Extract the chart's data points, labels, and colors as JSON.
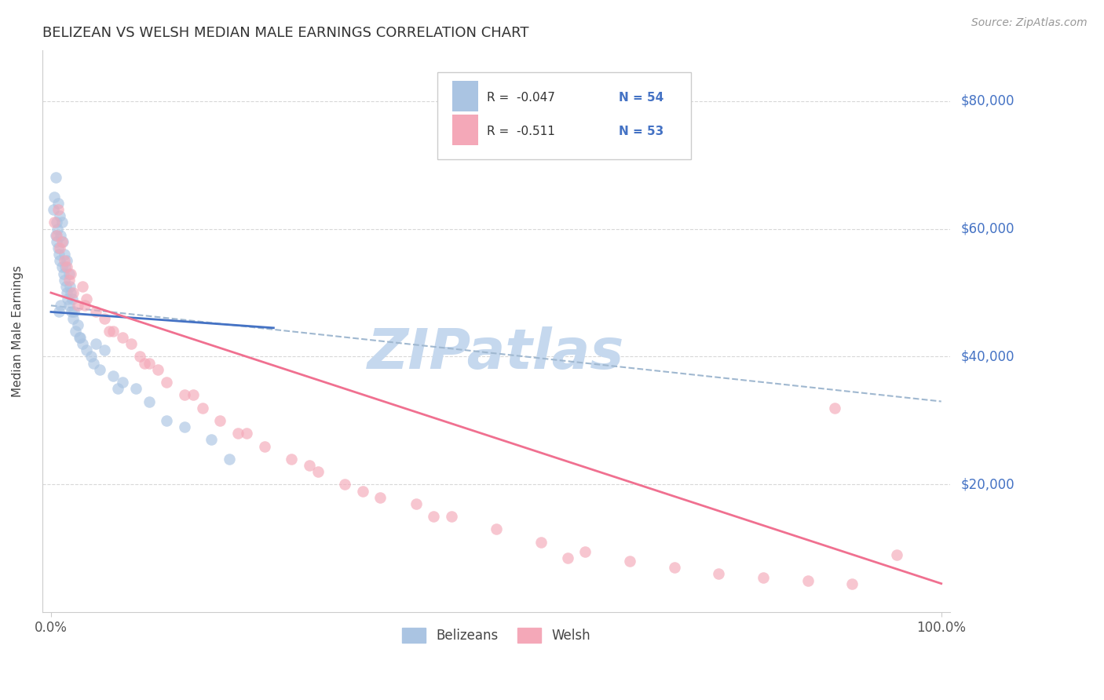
{
  "title": "BELIZEAN VS WELSH MEDIAN MALE EARNINGS CORRELATION CHART",
  "source": "Source: ZipAtlas.com",
  "ylabel": "Median Male Earnings",
  "y_tick_labels": [
    "$80,000",
    "$60,000",
    "$40,000",
    "$20,000"
  ],
  "y_tick_values": [
    80000,
    60000,
    40000,
    20000
  ],
  "y_label_color": "#4472c4",
  "y_range": [
    0,
    88000
  ],
  "x_range": [
    -1,
    101
  ],
  "belizean_color": "#aac4e2",
  "welsh_color": "#f4a8b8",
  "belizean_line_color": "#4472c4",
  "welsh_line_color": "#f07090",
  "dashed_line_color": "#a0b8d0",
  "dot_size": 110,
  "dot_alpha": 0.65,
  "background_color": "#ffffff",
  "grid_color": "#d8d8d8",
  "watermark": "ZIPatlas",
  "watermark_color": "#c5d8ee",
  "legend_r1": "R =  -0.047",
  "legend_n1": "N = 54",
  "legend_r2": "R =  -0.511",
  "legend_n2": "N = 53",
  "bel_line_x0": 0,
  "bel_line_x1": 25,
  "bel_line_y0": 47000,
  "bel_line_y1": 44500,
  "wel_line_x0": 0,
  "wel_line_x1": 100,
  "wel_line_y0": 50000,
  "wel_line_y1": 4500,
  "dash_line_x0": 0,
  "dash_line_x1": 100,
  "dash_line_y0": 48000,
  "dash_line_y1": 33000
}
